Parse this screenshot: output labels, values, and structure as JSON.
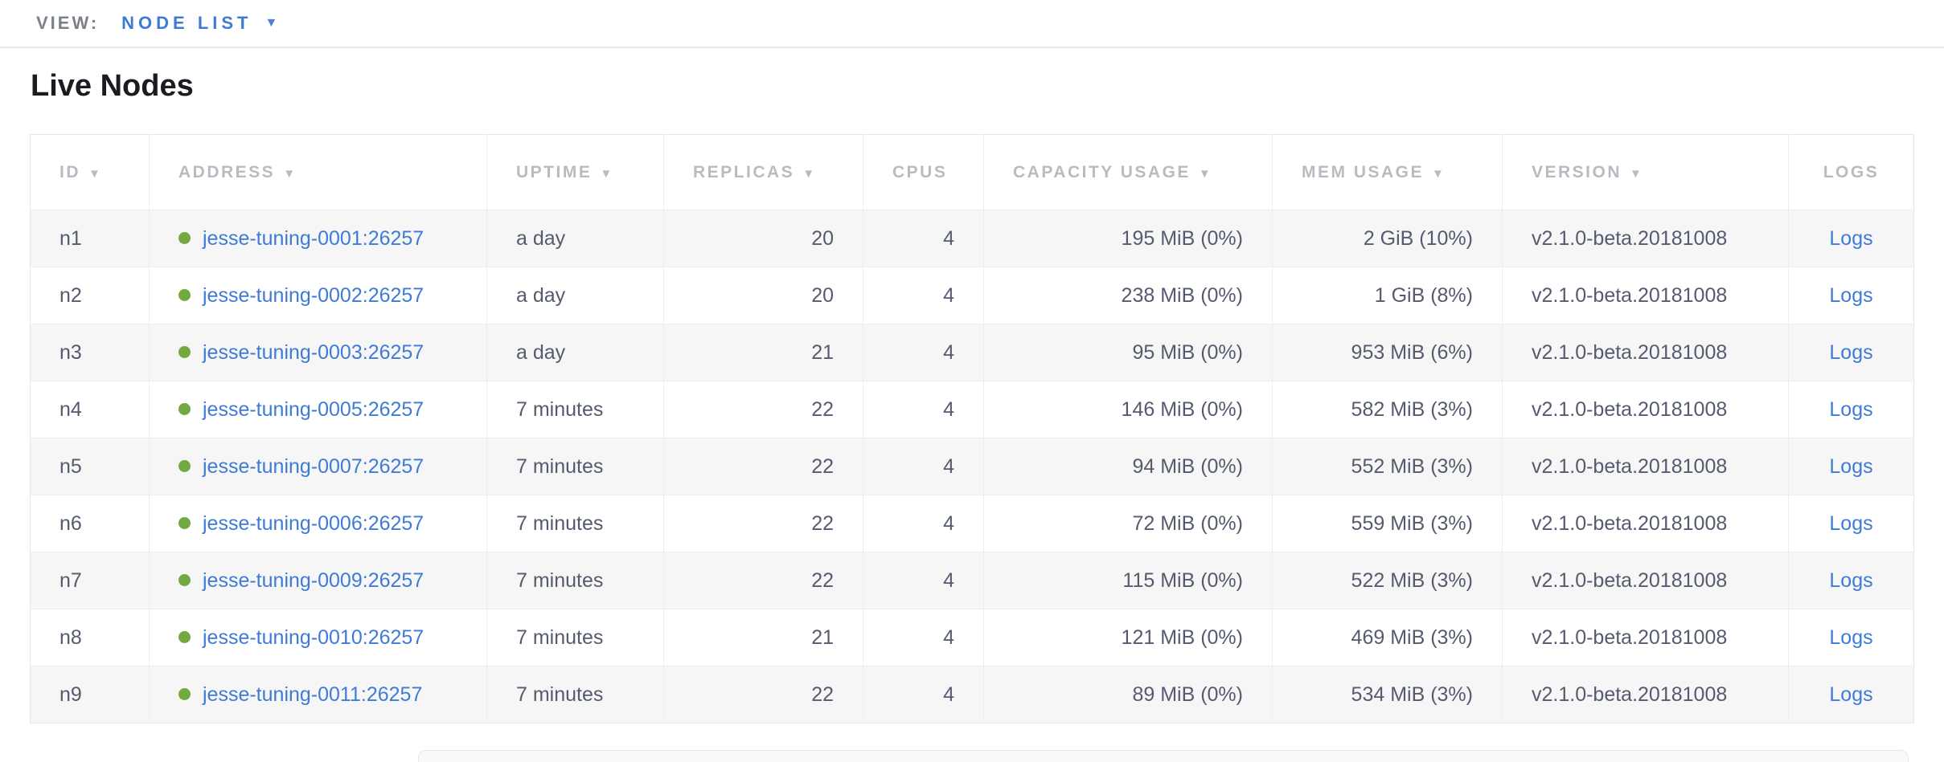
{
  "view_bar": {
    "label": "VIEW:",
    "selected": "NODE LIST"
  },
  "page_title": "Live Nodes",
  "table": {
    "columns": [
      {
        "key": "id",
        "label": "ID",
        "sortable": true,
        "align": "left"
      },
      {
        "key": "address",
        "label": "ADDRESS",
        "sortable": true,
        "align": "left"
      },
      {
        "key": "uptime",
        "label": "UPTIME",
        "sortable": true,
        "align": "left"
      },
      {
        "key": "replicas",
        "label": "REPLICAS",
        "sortable": true,
        "align": "right"
      },
      {
        "key": "cpus",
        "label": "CPUS",
        "sortable": false,
        "align": "right"
      },
      {
        "key": "capacity",
        "label": "CAPACITY USAGE",
        "sortable": true,
        "align": "right"
      },
      {
        "key": "mem",
        "label": "MEM USAGE",
        "sortable": true,
        "align": "right"
      },
      {
        "key": "version",
        "label": "VERSION",
        "sortable": true,
        "align": "left"
      },
      {
        "key": "logs",
        "label": "LOGS",
        "sortable": false,
        "align": "center"
      }
    ],
    "rows": [
      {
        "id": "n1",
        "status": "live",
        "address": "jesse-tuning-0001:26257",
        "uptime": "a day",
        "replicas": "20",
        "cpus": "4",
        "capacity": "195 MiB (0%)",
        "mem": "2 GiB (10%)",
        "version": "v2.1.0-beta.20181008",
        "logs": "Logs"
      },
      {
        "id": "n2",
        "status": "live",
        "address": "jesse-tuning-0002:26257",
        "uptime": "a day",
        "replicas": "20",
        "cpus": "4",
        "capacity": "238 MiB (0%)",
        "mem": "1 GiB (8%)",
        "version": "v2.1.0-beta.20181008",
        "logs": "Logs"
      },
      {
        "id": "n3",
        "status": "live",
        "address": "jesse-tuning-0003:26257",
        "uptime": "a day",
        "replicas": "21",
        "cpus": "4",
        "capacity": "95 MiB (0%)",
        "mem": "953 MiB (6%)",
        "version": "v2.1.0-beta.20181008",
        "logs": "Logs"
      },
      {
        "id": "n4",
        "status": "live",
        "address": "jesse-tuning-0005:26257",
        "uptime": "7 minutes",
        "replicas": "22",
        "cpus": "4",
        "capacity": "146 MiB (0%)",
        "mem": "582 MiB (3%)",
        "version": "v2.1.0-beta.20181008",
        "logs": "Logs"
      },
      {
        "id": "n5",
        "status": "live",
        "address": "jesse-tuning-0007:26257",
        "uptime": "7 minutes",
        "replicas": "22",
        "cpus": "4",
        "capacity": "94 MiB (0%)",
        "mem": "552 MiB (3%)",
        "version": "v2.1.0-beta.20181008",
        "logs": "Logs"
      },
      {
        "id": "n6",
        "status": "live",
        "address": "jesse-tuning-0006:26257",
        "uptime": "7 minutes",
        "replicas": "22",
        "cpus": "4",
        "capacity": "72 MiB (0%)",
        "mem": "559 MiB (3%)",
        "version": "v2.1.0-beta.20181008",
        "logs": "Logs"
      },
      {
        "id": "n7",
        "status": "live",
        "address": "jesse-tuning-0009:26257",
        "uptime": "7 minutes",
        "replicas": "22",
        "cpus": "4",
        "capacity": "115 MiB (0%)",
        "mem": "522 MiB (3%)",
        "version": "v2.1.0-beta.20181008",
        "logs": "Logs"
      },
      {
        "id": "n8",
        "status": "live",
        "address": "jesse-tuning-0010:26257",
        "uptime": "7 minutes",
        "replicas": "21",
        "cpus": "4",
        "capacity": "121 MiB (0%)",
        "mem": "469 MiB (3%)",
        "version": "v2.1.0-beta.20181008",
        "logs": "Logs"
      },
      {
        "id": "n9",
        "status": "live",
        "address": "jesse-tuning-0011:26257",
        "uptime": "7 minutes",
        "replicas": "22",
        "cpus": "4",
        "capacity": "89 MiB (0%)",
        "mem": "534 MiB (3%)",
        "version": "v2.1.0-beta.20181008",
        "logs": "Logs"
      }
    ]
  },
  "icons": {
    "sort": "sort-desc-icon",
    "dropdown": "dropdown-caret-icon",
    "node_status": "live-status-dot-icon"
  },
  "colors": {
    "link_blue": "#3e7bd6",
    "live_green": "#72aa41",
    "header_text": "#b9bbc0",
    "cell_text": "#555b6e",
    "zebra_gray": "#f6f6f6",
    "border_gray": "#ededed"
  }
}
